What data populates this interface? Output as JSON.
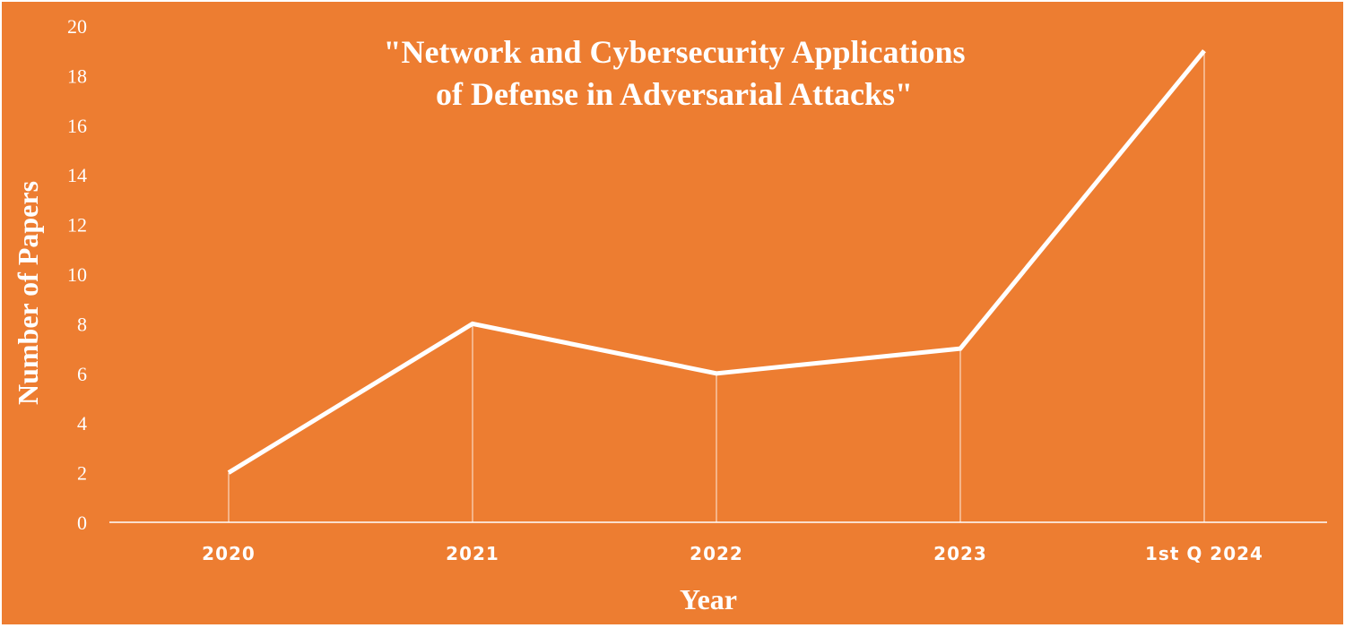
{
  "chart_data": {
    "type": "line",
    "title_lines": [
      "\"Network and Cybersecurity Applications",
      "of Defense in Adversarial Attacks\""
    ],
    "xlabel": "Year",
    "ylabel": "Number of Papers",
    "categories": [
      "2020",
      "2021",
      "2022",
      "2023",
      "1st Q 2024"
    ],
    "series": [
      {
        "values": [
          2,
          8,
          6,
          7,
          19
        ]
      }
    ],
    "ylim": [
      0,
      20
    ],
    "yticks": [
      0,
      2,
      4,
      6,
      8,
      10,
      12,
      14,
      16,
      18,
      20
    ],
    "grid": false,
    "drop_lines": true,
    "legend": "none",
    "colors": {
      "background": "#ED7D31",
      "line": "#ffffff",
      "text": "#ffffff"
    }
  }
}
